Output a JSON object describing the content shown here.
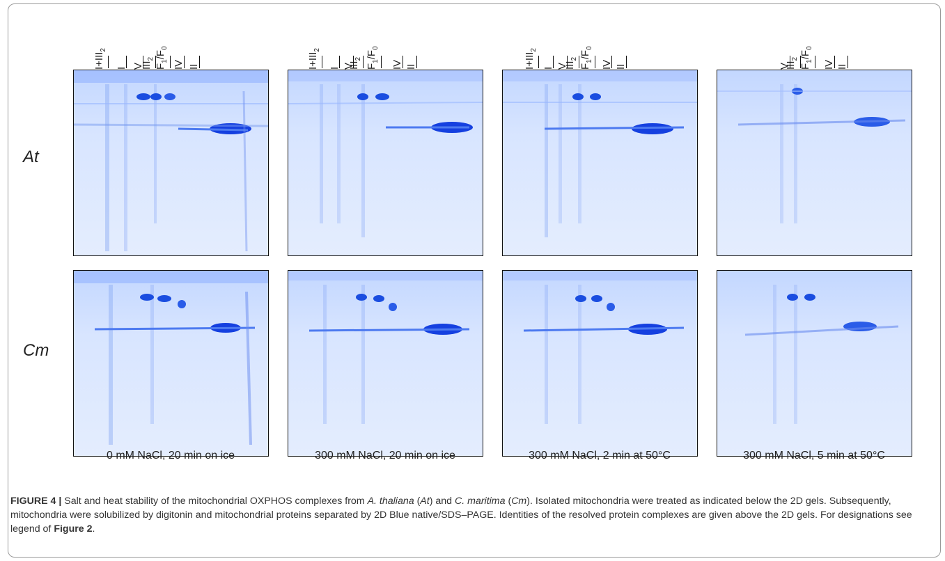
{
  "rows": [
    {
      "label": "At"
    },
    {
      "label": "Cm"
    }
  ],
  "conditions": [
    "0 mM NaCl, 20 min on ice",
    "300 mM NaCl, 20 min on ice",
    "300 mM NaCl, 2 min at 50°C",
    "300 mM NaCl, 5 min at 50°C"
  ],
  "lane_label_text": {
    "i_iii2": "I+III",
    "i_iii2_sub": "2",
    "i": "I",
    "v": "V",
    "iii2": "III",
    "iii2_sub": "2",
    "f1f0": "F",
    "f1_sub": "1",
    "f0_sub": "0",
    "iv": "IV",
    "ii": "II"
  },
  "caption": {
    "figure_label": "FIGURE 4 |",
    "t1": " Salt and heat stability of the mitochondrial OXPHOS complexes from ",
    "sp1": "A. thaliana",
    "t2": " (",
    "ab1": "At",
    "t3": ") and ",
    "sp2": "C. maritima",
    "t4": " (",
    "ab2": "Cm",
    "t5": "). Isolated mitochondria were treated as indicated below the 2D gels. Subsequently, mitochondria were solubilized by digitonin and mitochondrial proteins separated by 2D Blue native/SDS–PAGE. Identities of the resolved protein complexes are given above the 2D gels. For designations see legend of ",
    "ref": "Figure 2",
    "t6": "."
  }
}
